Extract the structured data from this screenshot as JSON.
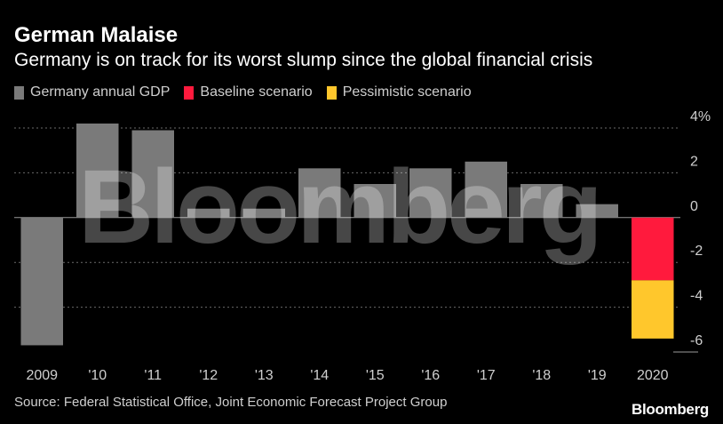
{
  "chart_data": {
    "type": "bar",
    "title": "German Malaise",
    "subtitle": "Germany is on track for its worst slump since the global financial crisis",
    "categories": [
      "2009",
      "'10",
      "'11",
      "'12",
      "'13",
      "'14",
      "'15",
      "'16",
      "'17",
      "'18",
      "'19",
      "2020"
    ],
    "series": [
      {
        "name": "Germany annual GDP",
        "color": "#7a7a7a",
        "values": [
          -5.7,
          4.2,
          3.9,
          0.4,
          0.4,
          2.2,
          1.5,
          2.2,
          2.5,
          1.5,
          0.6,
          null
        ]
      },
      {
        "name": "Baseline scenario",
        "color": "#ff1a3d",
        "values": [
          null,
          null,
          null,
          null,
          null,
          null,
          null,
          null,
          null,
          null,
          null,
          -2.8
        ]
      },
      {
        "name": "Pessimistic scenario",
        "color": "#ffc72c",
        "values": [
          null,
          null,
          null,
          null,
          null,
          null,
          null,
          null,
          null,
          null,
          null,
          -5.4
        ]
      }
    ],
    "y_ticks": [
      {
        "value": 4,
        "label": "4%"
      },
      {
        "value": 2,
        "label": "2"
      },
      {
        "value": 0,
        "label": "0"
      },
      {
        "value": -2,
        "label": "-2"
      },
      {
        "value": -4,
        "label": "-4"
      },
      {
        "value": -6,
        "label": "-6"
      }
    ],
    "ylim": [
      -6,
      4
    ],
    "grid": true,
    "legend_position": "top-left",
    "y_axis_position": "right"
  },
  "source": "Source: Federal Statistical Office, Joint Economic Forecast Project Group",
  "brand": "Bloomberg",
  "watermark": "Bloomberg"
}
